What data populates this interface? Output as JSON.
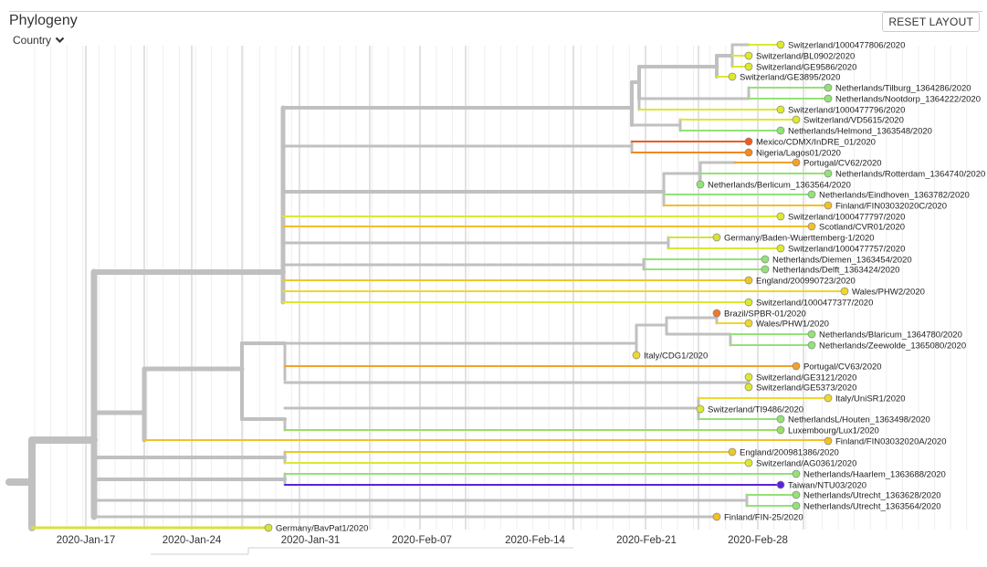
{
  "panel": {
    "title": "Phylogeny",
    "color_by": "Country",
    "reset_label": "RESET LAYOUT"
  },
  "icons": {
    "dropdown": "chevron-down-icon"
  },
  "colors": {
    "branch": "#c0c0c0",
    "switzerland": "#dde82f",
    "netherlands": "#93e276",
    "mexico": "#f05a1e",
    "nigeria": "#f28a1f",
    "portugal": "#f0a22b",
    "finland": "#f2c123",
    "scotland": "#f0bf2b",
    "germany": "#d8e23a",
    "england": "#eac82b",
    "wales": "#eed828",
    "brazil": "#f2762a",
    "italy": "#f0d82c",
    "luxembourg": "#9ade62",
    "taiwan": "#5a23d6"
  },
  "axis": {
    "ticks": [
      "2020-Jan-17",
      "2020-Jan-24",
      "2020-Jan-31",
      "2020-Feb-07",
      "2020-Feb-14",
      "2020-Feb-21",
      "2020-Feb-28"
    ]
  },
  "tips": [
    {
      "name": "Switzerland/1000477806/2020",
      "country": "switzerland"
    },
    {
      "name": "Switzerland/BL0902/2020",
      "country": "switzerland"
    },
    {
      "name": "Switzerland/GE9586/2020",
      "country": "switzerland"
    },
    {
      "name": "Switzerland/GE3895/2020",
      "country": "switzerland"
    },
    {
      "name": "Netherlands/Tilburg_1364286/2020",
      "country": "netherlands"
    },
    {
      "name": "Netherlands/Nootdorp_1364222/2020",
      "country": "netherlands"
    },
    {
      "name": "Switzerland/1000477796/2020",
      "country": "switzerland"
    },
    {
      "name": "Switzerland/VD5615/2020",
      "country": "switzerland"
    },
    {
      "name": "Netherlands/Helmond_1363548/2020",
      "country": "netherlands"
    },
    {
      "name": "Mexico/CDMX/InDRE_01/2020",
      "country": "mexico"
    },
    {
      "name": "Nigeria/Lagos01/2020",
      "country": "nigeria"
    },
    {
      "name": "Portugal/CV62/2020",
      "country": "portugal"
    },
    {
      "name": "Netherlands/Rotterdam_1364740/2020",
      "country": "netherlands"
    },
    {
      "name": "Netherlands/Berlicum_1363564/2020",
      "country": "netherlands"
    },
    {
      "name": "Netherlands/Eindhoven_1363782/2020",
      "country": "netherlands"
    },
    {
      "name": "Finland/FIN03032020C/2020",
      "country": "finland"
    },
    {
      "name": "Switzerland/1000477797/2020",
      "country": "switzerland"
    },
    {
      "name": "Scotland/CVR01/2020",
      "country": "scotland"
    },
    {
      "name": "Germany/Baden-Wuerttemberg-1/2020",
      "country": "germany"
    },
    {
      "name": "Switzerland/1000477757/2020",
      "country": "switzerland"
    },
    {
      "name": "Netherlands/Diemen_1363454/2020",
      "country": "netherlands"
    },
    {
      "name": "Netherlands/Delft_1363424/2020",
      "country": "netherlands"
    },
    {
      "name": "England/200990723/2020",
      "country": "england"
    },
    {
      "name": "Wales/PHW2/2020",
      "country": "wales"
    },
    {
      "name": "Switzerland/1000477377/2020",
      "country": "switzerland"
    },
    {
      "name": "Brazil/SPBR-01/2020",
      "country": "brazil"
    },
    {
      "name": "Wales/PHW1/2020",
      "country": "wales"
    },
    {
      "name": "Netherlands/Blaricum_1364780/2020",
      "country": "netherlands"
    },
    {
      "name": "Netherlands/Zeewolde_1365080/2020",
      "country": "netherlands"
    },
    {
      "name": "Italy/CDG1/2020",
      "country": "italy"
    },
    {
      "name": "Portugal/CV63/2020",
      "country": "portugal"
    },
    {
      "name": "Switzerland/GE3121/2020",
      "country": "switzerland"
    },
    {
      "name": "Switzerland/GE5373/2020",
      "country": "switzerland"
    },
    {
      "name": "Italy/UniSR1/2020",
      "country": "italy"
    },
    {
      "name": "Switzerland/TI9486/2020",
      "country": "switzerland"
    },
    {
      "name": "NetherlandsL/Houten_1363498/2020",
      "country": "netherlands"
    },
    {
      "name": "Luxembourg/Lux1/2020",
      "country": "luxembourg"
    },
    {
      "name": "Finland/FIN03032020A/2020",
      "country": "finland"
    },
    {
      "name": "England/200981386/2020",
      "country": "england"
    },
    {
      "name": "Switzerland/AG0361/2020",
      "country": "switzerland"
    },
    {
      "name": "Netherlands/Haarlem_1363688/2020",
      "country": "netherlands"
    },
    {
      "name": "Taiwan/NTU03/2020",
      "country": "taiwan"
    },
    {
      "name": "Netherlands/Utrecht_1363628/2020",
      "country": "netherlands"
    },
    {
      "name": "Netherlands/Utrecht_1363564/2020",
      "country": "netherlands"
    },
    {
      "name": "Finland/FIN-25/2020",
      "country": "finland"
    },
    {
      "name": "Germany/BavPat1/2020",
      "country": "germany"
    }
  ]
}
